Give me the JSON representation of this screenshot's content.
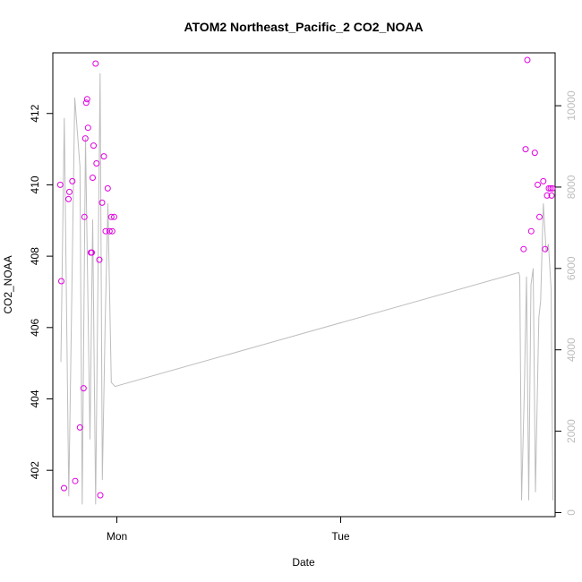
{
  "chart_data": {
    "type": "scatter",
    "title": "ATOM2 Northeast_Pacific_2 CO2_NOAA",
    "xlabel": "Date",
    "ylabel": "CO2_NOAA",
    "xlim": [
      -0.286,
      1.958
    ],
    "ylim": [
      400.7,
      413.7
    ],
    "y2lim": [
      -100,
      11300
    ],
    "x_ticks": [
      {
        "value": 0,
        "label": "Mon"
      },
      {
        "value": 1,
        "label": "Tue"
      }
    ],
    "y_ticks": [
      402,
      404,
      406,
      408,
      410,
      412
    ],
    "y2_ticks": [
      0,
      2000,
      4000,
      6000,
      8000,
      10000
    ],
    "grid": false,
    "legend": "none",
    "series": [
      {
        "role": "points",
        "color": "#e000e0",
        "marker": "open-circle",
        "x": [
          -0.253,
          -0.248,
          -0.236,
          -0.216,
          -0.212,
          -0.199,
          -0.186,
          -0.165,
          -0.149,
          -0.145,
          -0.141,
          -0.137,
          -0.133,
          -0.129,
          -0.116,
          -0.112,
          -0.108,
          -0.104,
          -0.095,
          -0.091,
          -0.078,
          -0.074,
          -0.066,
          -0.058,
          -0.05,
          -0.041,
          -0.033,
          -0.025,
          -0.021,
          -0.012,
          1.817,
          1.826,
          1.834,
          1.851,
          1.867,
          1.88,
          1.888,
          1.905,
          1.913,
          1.922,
          1.93,
          1.938,
          1.942,
          1.946
        ],
        "y": [
          410.0,
          407.3,
          401.5,
          409.6,
          409.8,
          410.1,
          401.7,
          403.2,
          404.3,
          409.1,
          411.3,
          412.3,
          412.4,
          411.6,
          408.1,
          408.1,
          410.2,
          411.1,
          413.4,
          410.6,
          407.9,
          401.3,
          409.5,
          410.8,
          408.7,
          409.9,
          408.7,
          409.1,
          408.7,
          409.1,
          408.2,
          411.0,
          413.5,
          408.7,
          410.9,
          410.0,
          409.1,
          410.1,
          408.2,
          409.7,
          409.9,
          409.9,
          409.7,
          409.9
        ]
      },
      {
        "role": "line",
        "color": "#bdbdbd",
        "axis": "right",
        "x": [
          -0.25,
          -0.235,
          -0.215,
          -0.188,
          -0.165,
          -0.155,
          -0.14,
          -0.12,
          -0.108,
          -0.095,
          -0.075,
          -0.065,
          -0.052,
          -0.04,
          -0.025,
          -0.008,
          1.795,
          1.8,
          1.808,
          1.82,
          1.83,
          1.84,
          1.85,
          1.86,
          1.87,
          1.885,
          1.893,
          1.905,
          1.918,
          1.928,
          1.94,
          1.948
        ],
        "y": [
          3700,
          9700,
          400,
          10200,
          8500,
          200,
          9200,
          1800,
          7200,
          200,
          10800,
          800,
          4700,
          7600,
          3200,
          3100,
          5900,
          5800,
          300,
          2900,
          5800,
          300,
          5600,
          6000,
          500,
          4800,
          5200,
          7600,
          6400,
          6600,
          5500,
          300
        ]
      }
    ]
  }
}
